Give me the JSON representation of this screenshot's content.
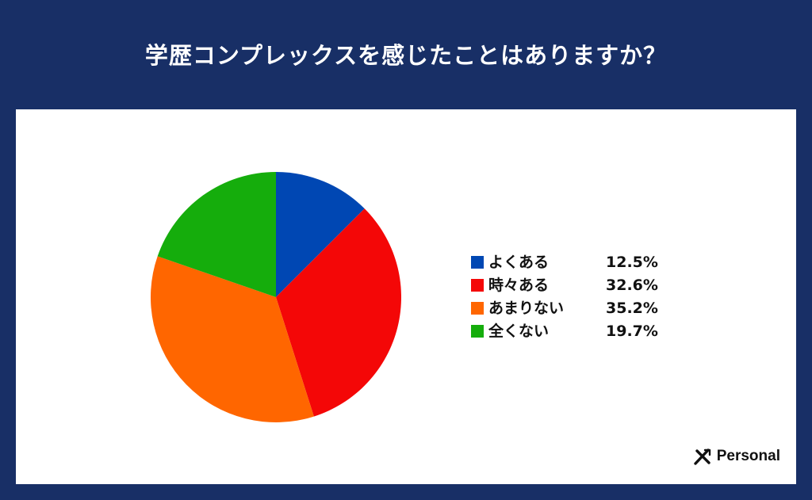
{
  "title": "学歴コンプレックスを感じたことはありますか？",
  "chart_data": {
    "type": "pie",
    "title": "学歴コンプレックスを感じたことはありますか？",
    "unit": "%",
    "legend_position": "right",
    "slices": [
      {
        "label": "よくある",
        "value": 12.5,
        "value_text": "12.5%",
        "color": "#0047b3"
      },
      {
        "label": "時々ある",
        "value": 32.6,
        "value_text": "32.6%",
        "color": "#f40707"
      },
      {
        "label": "あまりない",
        "value": 35.2,
        "value_text": "35.2%",
        "color": "#ff6600"
      },
      {
        "label": "全くない",
        "value": 19.7,
        "value_text": "19.7%",
        "color": "#15ad0c"
      }
    ]
  },
  "brand": {
    "name": "Personal",
    "logo_icon": "x-mark-icon"
  }
}
